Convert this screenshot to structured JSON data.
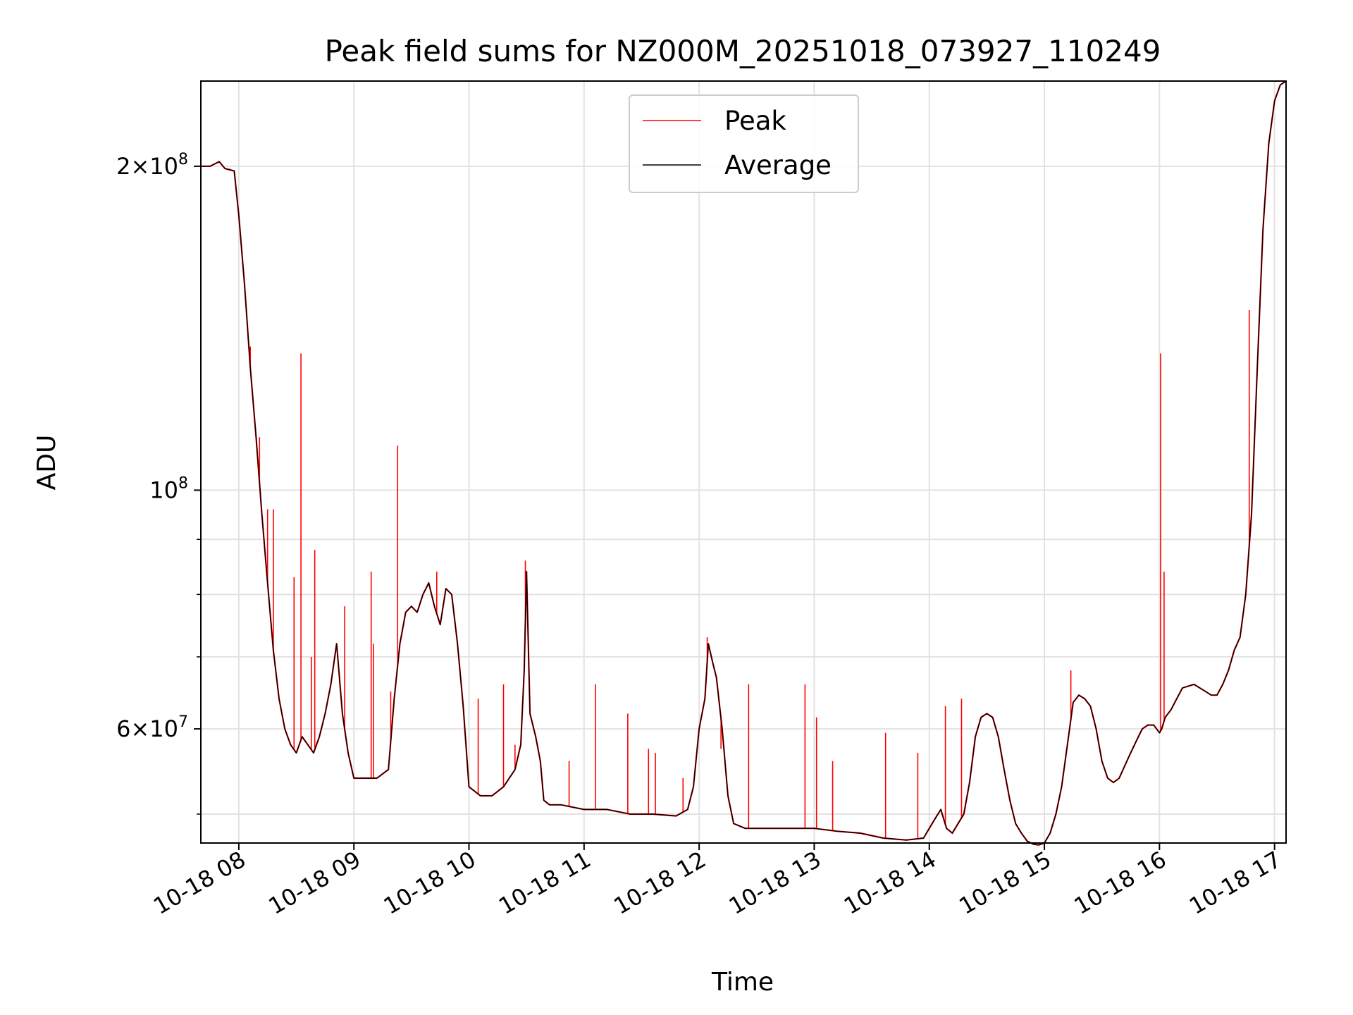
{
  "chart_data": {
    "type": "line",
    "title": "Peak field sums for NZ000M_20251018_073927_110249",
    "xlabel": "Time",
    "ylabel": "ADU",
    "yscale": "log",
    "ylim": [
      47000000,
      240000000
    ],
    "xlim": [
      7.67,
      17.1
    ],
    "x_ticks": [
      {
        "value": 8,
        "label": "10-18 08"
      },
      {
        "value": 9,
        "label": "10-18 09"
      },
      {
        "value": 10,
        "label": "10-18 10"
      },
      {
        "value": 11,
        "label": "10-18 11"
      },
      {
        "value": 12,
        "label": "10-18 12"
      },
      {
        "value": 13,
        "label": "10-18 13"
      },
      {
        "value": 14,
        "label": "10-18 14"
      },
      {
        "value": 15,
        "label": "10-18 15"
      },
      {
        "value": 16,
        "label": "10-18 16"
      },
      {
        "value": 17,
        "label": "10-18 17"
      }
    ],
    "y_major_ticks": [
      {
        "value": 200000000,
        "mantissa": "2",
        "exp": "8"
      },
      {
        "value": 100000000,
        "mantissa": "",
        "exp": "8"
      },
      {
        "value": 60000000,
        "mantissa": "6",
        "exp": "7"
      }
    ],
    "y_minor_ticks": [
      50000000,
      70000000,
      80000000,
      90000000
    ],
    "legend": {
      "position": "upper center",
      "entries": [
        {
          "label": "Peak",
          "color": "#ff0000"
        },
        {
          "label": "Average",
          "color": "#000000"
        }
      ]
    },
    "series": [
      {
        "name": "Average",
        "color": "#000000",
        "x": [
          7.67,
          7.75,
          7.83,
          7.88,
          7.96,
          8.0,
          8.05,
          8.1,
          8.15,
          8.2,
          8.25,
          8.3,
          8.35,
          8.4,
          8.45,
          8.5,
          8.55,
          8.6,
          8.65,
          8.7,
          8.75,
          8.8,
          8.85,
          8.9,
          8.95,
          9.0,
          9.05,
          9.1,
          9.2,
          9.3,
          9.35,
          9.4,
          9.45,
          9.5,
          9.55,
          9.6,
          9.65,
          9.7,
          9.75,
          9.8,
          9.85,
          9.9,
          9.95,
          10.0,
          10.1,
          10.2,
          10.3,
          10.4,
          10.45,
          10.48,
          10.5,
          10.53,
          10.58,
          10.62,
          10.65,
          10.7,
          10.8,
          11.0,
          11.2,
          11.4,
          11.6,
          11.8,
          11.9,
          11.95,
          12.0,
          12.05,
          12.08,
          12.12,
          12.15,
          12.2,
          12.25,
          12.3,
          12.4,
          12.6,
          12.8,
          13.0,
          13.2,
          13.4,
          13.6,
          13.8,
          13.95,
          14.0,
          14.05,
          14.1,
          14.15,
          14.2,
          14.3,
          14.35,
          14.4,
          14.45,
          14.5,
          14.55,
          14.6,
          14.65,
          14.7,
          14.75,
          14.8,
          14.85,
          14.9,
          14.95,
          15.0,
          15.05,
          15.1,
          15.15,
          15.2,
          15.25,
          15.3,
          15.35,
          15.4,
          15.45,
          15.5,
          15.55,
          15.6,
          15.65,
          15.7,
          15.75,
          15.8,
          15.85,
          15.9,
          15.95,
          16.0,
          16.02,
          16.05,
          16.1,
          16.15,
          16.2,
          16.3,
          16.4,
          16.45,
          16.5,
          16.55,
          16.6,
          16.65,
          16.7,
          16.75,
          16.8,
          16.85,
          16.9,
          16.95,
          17.0,
          17.05,
          17.1
        ],
        "values": [
          200000000,
          200000000,
          202000000,
          199000000,
          198000000,
          180000000,
          155000000,
          130000000,
          112000000,
          95000000,
          82000000,
          71000000,
          64000000,
          60000000,
          58000000,
          57000000,
          59000000,
          58000000,
          57000000,
          59000000,
          62000000,
          66000000,
          72000000,
          62000000,
          57000000,
          54000000,
          54000000,
          54000000,
          54000000,
          55000000,
          64000000,
          72000000,
          77000000,
          78000000,
          77000000,
          80000000,
          82000000,
          78000000,
          75000000,
          81000000,
          80000000,
          72000000,
          63000000,
          53000000,
          52000000,
          52000000,
          53000000,
          55000000,
          58000000,
          68000000,
          84000000,
          62000000,
          59000000,
          56000000,
          51500000,
          51000000,
          51000000,
          50500000,
          50500000,
          50000000,
          50000000,
          49800000,
          50500000,
          53000000,
          60000000,
          64000000,
          72000000,
          69000000,
          67000000,
          60000000,
          52000000,
          49000000,
          48500000,
          48500000,
          48500000,
          48500000,
          48200000,
          48000000,
          47500000,
          47300000,
          47500000,
          48500000,
          49500000,
          50500000,
          48500000,
          48000000,
          50000000,
          53500000,
          59000000,
          61500000,
          62000000,
          61500000,
          59000000,
          55000000,
          51500000,
          49000000,
          48000000,
          47200000,
          46900000,
          46800000,
          47000000,
          48000000,
          50000000,
          53000000,
          58000000,
          63500000,
          64500000,
          64000000,
          63000000,
          60000000,
          56000000,
          54000000,
          53500000,
          54000000,
          55500000,
          57000000,
          58500000,
          60000000,
          60500000,
          60500000,
          59500000,
          60000000,
          61500000,
          62500000,
          64000000,
          65500000,
          66000000,
          65000000,
          64500000,
          64500000,
          66000000,
          68000000,
          71000000,
          73000000,
          80000000,
          95000000,
          130000000,
          175000000,
          210000000,
          230000000,
          238000000,
          240000000
        ]
      },
      {
        "name": "Peak",
        "color": "#ff0000",
        "spikes": [
          {
            "x": 7.92,
            "value": 199000000
          },
          {
            "x": 8.1,
            "value": 136000000
          },
          {
            "x": 8.18,
            "value": 112000000
          },
          {
            "x": 8.25,
            "value": 96000000
          },
          {
            "x": 8.3,
            "value": 96000000
          },
          {
            "x": 8.48,
            "value": 83000000
          },
          {
            "x": 8.54,
            "value": 134000000
          },
          {
            "x": 8.63,
            "value": 70000000
          },
          {
            "x": 8.66,
            "value": 88000000
          },
          {
            "x": 8.92,
            "value": 78000000
          },
          {
            "x": 9.15,
            "value": 84000000
          },
          {
            "x": 9.17,
            "value": 72000000
          },
          {
            "x": 9.32,
            "value": 65000000
          },
          {
            "x": 9.38,
            "value": 110000000
          },
          {
            "x": 9.72,
            "value": 84000000
          },
          {
            "x": 10.08,
            "value": 64000000
          },
          {
            "x": 10.3,
            "value": 66000000
          },
          {
            "x": 10.4,
            "value": 58000000
          },
          {
            "x": 10.49,
            "value": 86000000
          },
          {
            "x": 10.87,
            "value": 56000000
          },
          {
            "x": 11.1,
            "value": 66000000
          },
          {
            "x": 11.38,
            "value": 62000000
          },
          {
            "x": 11.56,
            "value": 57500000
          },
          {
            "x": 11.62,
            "value": 57000000
          },
          {
            "x": 11.86,
            "value": 54000000
          },
          {
            "x": 12.07,
            "value": 73000000
          },
          {
            "x": 12.19,
            "value": 57500000
          },
          {
            "x": 12.43,
            "value": 66000000
          },
          {
            "x": 12.92,
            "value": 66000000
          },
          {
            "x": 13.02,
            "value": 61500000
          },
          {
            "x": 13.16,
            "value": 56000000
          },
          {
            "x": 13.62,
            "value": 59500000
          },
          {
            "x": 13.9,
            "value": 57000000
          },
          {
            "x": 14.14,
            "value": 63000000
          },
          {
            "x": 14.28,
            "value": 64000000
          },
          {
            "x": 15.23,
            "value": 68000000
          },
          {
            "x": 16.01,
            "value": 134000000
          },
          {
            "x": 16.04,
            "value": 84000000
          },
          {
            "x": 16.78,
            "value": 147000000
          }
        ]
      }
    ]
  }
}
